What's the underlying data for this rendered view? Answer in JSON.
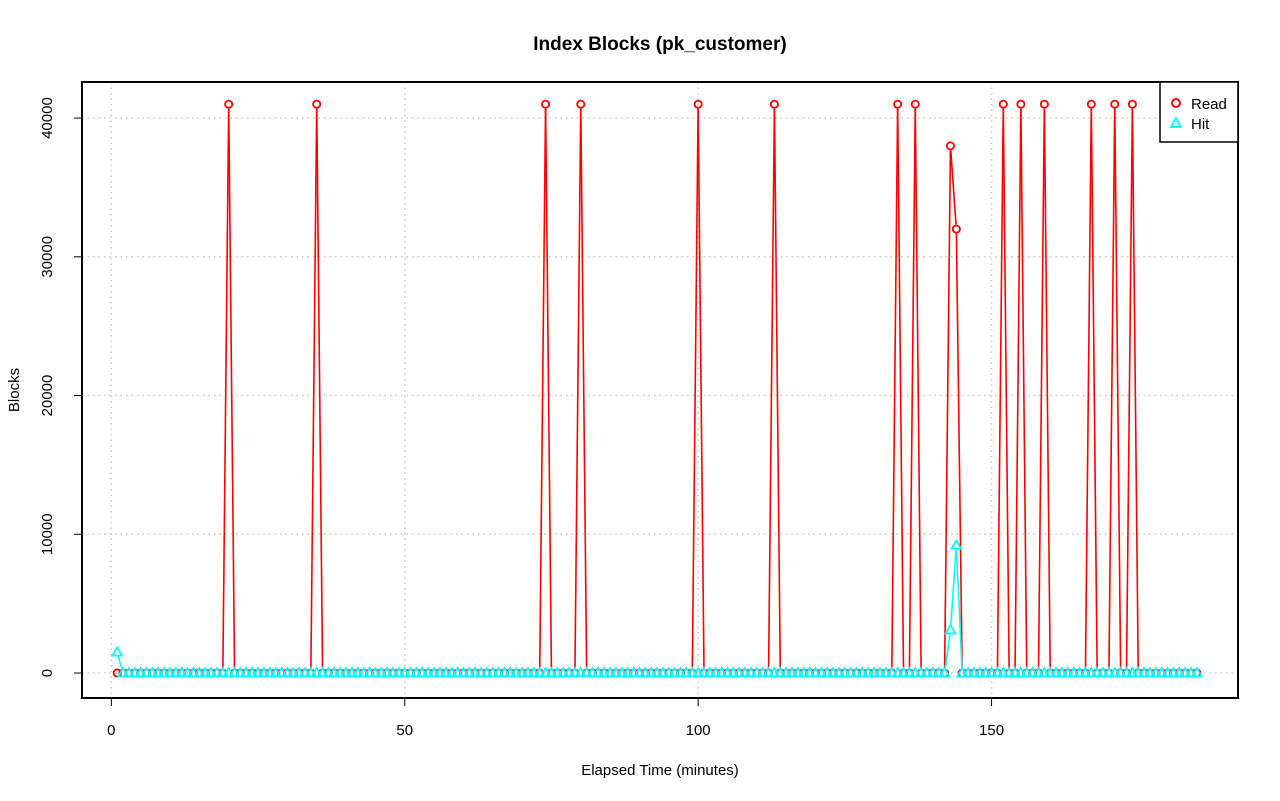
{
  "chart_data": {
    "type": "line",
    "title": "Index Blocks (pk_customer)",
    "xlabel": "Elapsed Time (minutes)",
    "ylabel": "Blocks",
    "xlim": [
      -5,
      192
    ],
    "ylim": [
      -1800,
      42600
    ],
    "x_ticks": [
      0,
      50,
      100,
      150
    ],
    "y_ticks": [
      0,
      10000,
      20000,
      30000,
      40000
    ],
    "grid": true,
    "legend_position": "top-right",
    "x_range": [
      1,
      185
    ],
    "series": [
      {
        "name": "Read",
        "color": "#ff0000",
        "marker": "circle",
        "baseline": 0,
        "points": [
          {
            "x": 20,
            "y": 41000
          },
          {
            "x": 35,
            "y": 41000
          },
          {
            "x": 74,
            "y": 41000
          },
          {
            "x": 80,
            "y": 41000
          },
          {
            "x": 100,
            "y": 41000
          },
          {
            "x": 113,
            "y": 41000
          },
          {
            "x": 134,
            "y": 41000
          },
          {
            "x": 137,
            "y": 41000
          },
          {
            "x": 143,
            "y": 38000
          },
          {
            "x": 144,
            "y": 32000
          },
          {
            "x": 152,
            "y": 41000
          },
          {
            "x": 155,
            "y": 41000
          },
          {
            "x": 159,
            "y": 41000
          },
          {
            "x": 167,
            "y": 41000
          },
          {
            "x": 171,
            "y": 41000
          },
          {
            "x": 174,
            "y": 41000
          }
        ]
      },
      {
        "name": "Hit",
        "color": "#00ffff",
        "marker": "triangle",
        "baseline": 0,
        "points": [
          {
            "x": 1,
            "y": 1500
          },
          {
            "x": 143,
            "y": 3100
          },
          {
            "x": 144,
            "y": 9200
          }
        ]
      }
    ]
  }
}
